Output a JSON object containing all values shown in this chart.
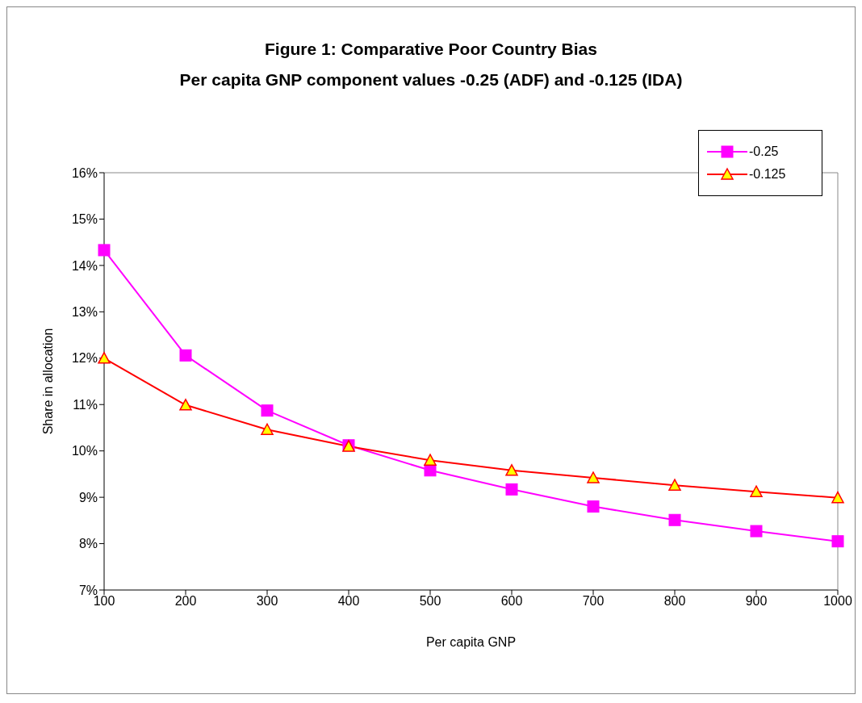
{
  "chart_data": {
    "type": "line",
    "title": "Figure 1: Comparative Poor Country Bias",
    "subtitle": "Per capita GNP component values -0.25 (ADF) and -0.125 (IDA)",
    "xlabel": "Per capita GNP",
    "ylabel": "Share  in allocation",
    "categories": [
      "100",
      "200",
      "300",
      "400",
      "500",
      "600",
      "700",
      "800",
      "900",
      "1000"
    ],
    "series": [
      {
        "name": "-0.25",
        "color": "#ff00ff",
        "marker": "square",
        "values": [
          14.33,
          12.06,
          10.87,
          10.12,
          9.58,
          9.17,
          8.8,
          8.51,
          8.27,
          8.05
        ]
      },
      {
        "name": "-0.125",
        "color": "#ff0000",
        "marker": "triangle",
        "values": [
          12.0,
          10.99,
          10.46,
          10.1,
          9.8,
          9.58,
          9.42,
          9.26,
          9.12,
          8.99
        ]
      }
    ],
    "ylim": [
      7,
      16
    ],
    "yticks": [
      {
        "value": 7,
        "label": "7%"
      },
      {
        "value": 8,
        "label": "8%"
      },
      {
        "value": 9,
        "label": "9%"
      },
      {
        "value": 10,
        "label": "10%"
      },
      {
        "value": 11,
        "label": "11%"
      },
      {
        "value": 12,
        "label": "12%"
      },
      {
        "value": 13,
        "label": "13%"
      },
      {
        "value": 14,
        "label": "14%"
      },
      {
        "value": 15,
        "label": "15%"
      },
      {
        "value": 16,
        "label": "16%"
      }
    ],
    "grid": false,
    "legend": "top right"
  }
}
